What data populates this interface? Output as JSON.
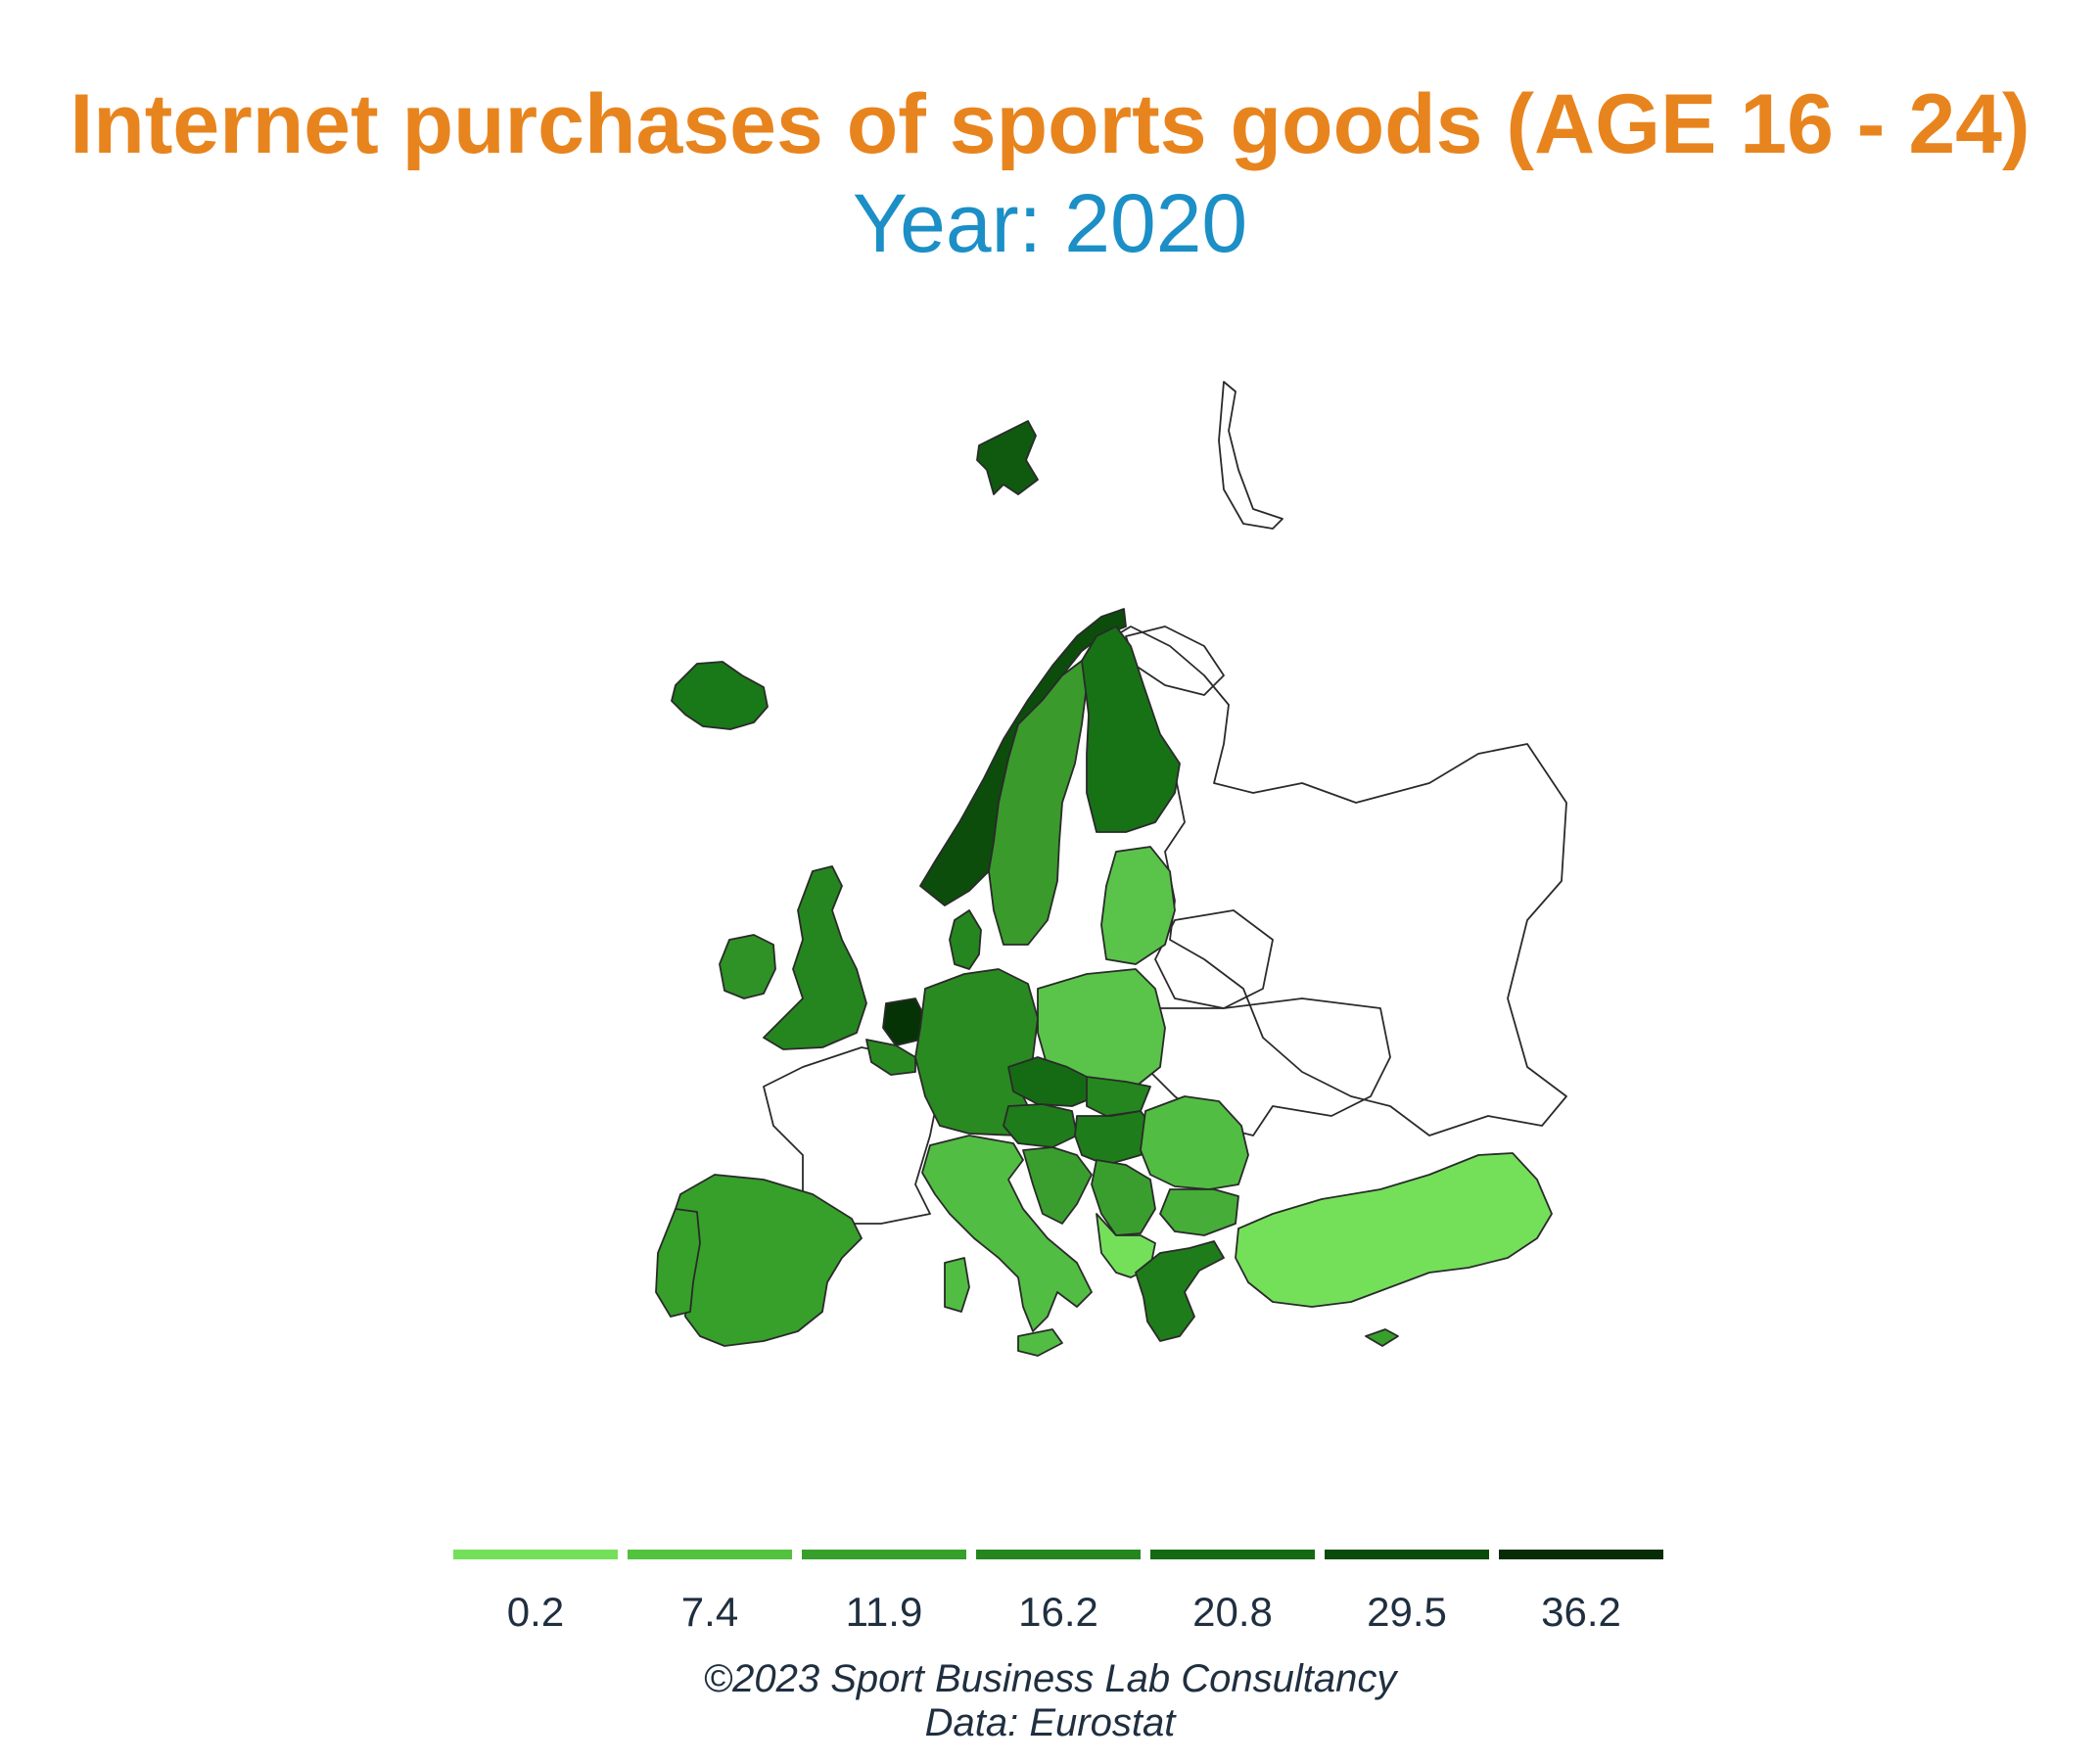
{
  "header": {
    "title": "Internet purchases of sports goods (AGE 16 - 24)",
    "subtitle": "Year: 2020"
  },
  "legend": {
    "items": [
      {
        "label": "0.2",
        "color": "#74e05a"
      },
      {
        "label": "7.4",
        "color": "#52c23f"
      },
      {
        "label": "11.9",
        "color": "#36a02a"
      },
      {
        "label": "16.2",
        "color": "#25861f"
      },
      {
        "label": "20.8",
        "color": "#136a12"
      },
      {
        "label": "29.5",
        "color": "#0a4a0a"
      },
      {
        "label": "36.2",
        "color": "#052c05"
      }
    ]
  },
  "regions": {
    "svalbard": "#0f5a0f",
    "iceland": "#197817",
    "norway": "#0c4d0c",
    "sweden": "#3a9a2c",
    "finland": "#177216",
    "uk": "#25861f",
    "ireland": "#2f9226",
    "netherlands": "#063306",
    "belgium": "#2a8a22",
    "denmark": "#25861f",
    "germany": "#2a8a22",
    "poland": "#5ac44a",
    "baltics": "#5ac44a",
    "czechia": "#156b13",
    "austria": "#1f7c1b",
    "slovakia": "#25861f",
    "hungary": "#1f7c1b",
    "romania": "#52bd43",
    "bulgaria": "#45ad38",
    "greece": "#1f7c1b",
    "turkey": "#74e05a",
    "spain": "#36a02a",
    "portugal": "#36a02a",
    "italy": "#52bd43",
    "croatia": "#3a9e2e",
    "serbia": "#3a9e2e",
    "western_balkans": "#74e05a",
    "cyprus": "#36a02a"
  },
  "credits": {
    "line1": "©2023 Sport Business Lab Consultancy",
    "line2": "Data: Eurostat"
  }
}
